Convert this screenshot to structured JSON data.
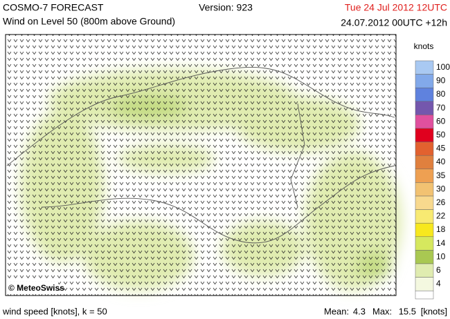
{
  "header": {
    "title": "COSMO-7 FORECAST",
    "subtitle": "Wind on Level 50 (800m above Ground)",
    "version": "Version: 923",
    "valid_time": "Tue 24 Jul 2012 12UTC",
    "run_time": "24.07.2012 00UTC +12h"
  },
  "map": {
    "credit": "© MeteoSwiss"
  },
  "legend": {
    "title": "knots",
    "items": [
      {
        "label": "100",
        "color": "#a9c9f2"
      },
      {
        "label": "90",
        "color": "#82a9ea"
      },
      {
        "label": "80",
        "color": "#5f82de"
      },
      {
        "label": "70",
        "color": "#7457ad"
      },
      {
        "label": "60",
        "color": "#e0509e"
      },
      {
        "label": "50",
        "color": "#e0001e"
      },
      {
        "label": "45",
        "color": "#e2612f"
      },
      {
        "label": "40",
        "color": "#e0803e"
      },
      {
        "label": "35",
        "color": "#eea052"
      },
      {
        "label": "30",
        "color": "#f2c272"
      },
      {
        "label": "26",
        "color": "#f8d98e"
      },
      {
        "label": "22",
        "color": "#f8ea72"
      },
      {
        "label": "18",
        "color": "#f7e81e"
      },
      {
        "label": "14",
        "color": "#d6e85e"
      },
      {
        "label": "10",
        "color": "#a9c852"
      },
      {
        "label": "6",
        "color": "#e0ecb0"
      },
      {
        "label": "4",
        "color": "#f4f8e0"
      }
    ]
  },
  "footer": {
    "caption": "wind speed [knots], k = 50",
    "mean_label": "Mean:",
    "mean": "4.3",
    "max_label": "Max:",
    "max": "15.5",
    "unit": "[knots]"
  }
}
